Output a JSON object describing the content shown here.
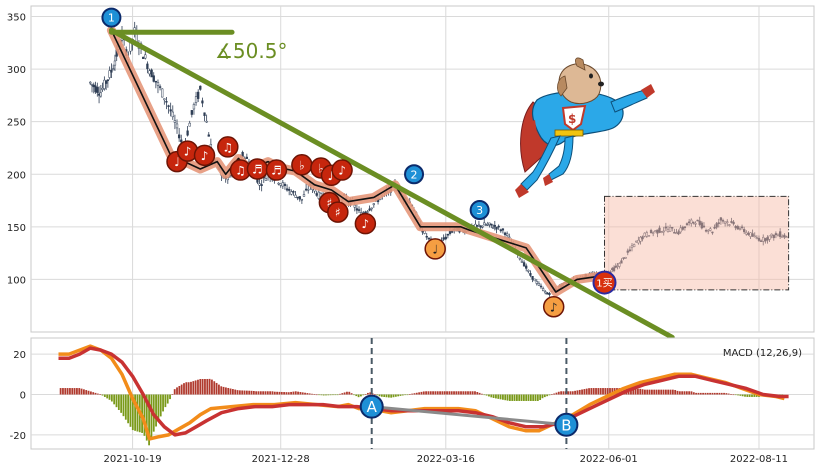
{
  "chart_data": [
    {
      "type": "candlestick",
      "panel": "price",
      "ylim": [
        50,
        360
      ],
      "y_ticks": [
        100,
        150,
        200,
        250,
        300,
        350
      ],
      "x_tick_labels": [
        "2021-10-19",
        "2021-12-28",
        "2022-03-16",
        "2022-06-01",
        "2022-08-11"
      ],
      "x_tick_days": [
        48,
        118,
        196,
        273,
        344
      ],
      "x_range_days": [
        0,
        370
      ],
      "grid": true,
      "price_path": [
        [
          28,
          287
        ],
        [
          33,
          278
        ],
        [
          38,
          298
        ],
        [
          43,
          330
        ],
        [
          46,
          312
        ],
        [
          49,
          335
        ],
        [
          52,
          320
        ],
        [
          56,
          300
        ],
        [
          60,
          285
        ],
        [
          64,
          270
        ],
        [
          67,
          255
        ],
        [
          70,
          238
        ],
        [
          72,
          225
        ],
        [
          74,
          240
        ],
        [
          77,
          265
        ],
        [
          80,
          280
        ],
        [
          83,
          250
        ],
        [
          86,
          215
        ],
        [
          89,
          205
        ],
        [
          92,
          195
        ],
        [
          96,
          200
        ],
        [
          100,
          218
        ],
        [
          104,
          210
        ],
        [
          108,
          190
        ],
        [
          112,
          200
        ],
        [
          116,
          196
        ],
        [
          120,
          188
        ],
        [
          124,
          182
        ],
        [
          128,
          176
        ],
        [
          132,
          190
        ],
        [
          136,
          180
        ],
        [
          140,
          176
        ],
        [
          144,
          162
        ],
        [
          148,
          178
        ],
        [
          152,
          172
        ],
        [
          156,
          162
        ],
        [
          160,
          168
        ],
        [
          164,
          176
        ],
        [
          168,
          182
        ],
        [
          172,
          190
        ],
        [
          176,
          178
        ],
        [
          180,
          172
        ],
        [
          184,
          150
        ],
        [
          188,
          138
        ],
        [
          192,
          132
        ],
        [
          196,
          140
        ],
        [
          200,
          148
        ],
        [
          205,
          147
        ],
        [
          210,
          150
        ],
        [
          215,
          152
        ],
        [
          220,
          150
        ],
        [
          224,
          145
        ],
        [
          228,
          132
        ],
        [
          232,
          118
        ],
        [
          236,
          104
        ],
        [
          240,
          95
        ],
        [
          244,
          86
        ],
        [
          248,
          90
        ],
        [
          253,
          97
        ],
        [
          258,
          100
        ],
        [
          263,
          104
        ],
        [
          268,
          104
        ],
        [
          273,
          106
        ],
        [
          278,
          114
        ],
        [
          282,
          125
        ],
        [
          286,
          135
        ],
        [
          290,
          142
        ],
        [
          294,
          145
        ],
        [
          298,
          147
        ],
        [
          302,
          148
        ],
        [
          306,
          145
        ],
        [
          310,
          152
        ],
        [
          314,
          156
        ],
        [
          318,
          150
        ],
        [
          322,
          146
        ],
        [
          326,
          157
        ],
        [
          330,
          154
        ],
        [
          334,
          150
        ],
        [
          338,
          145
        ],
        [
          342,
          140
        ],
        [
          346,
          138
        ],
        [
          350,
          141
        ],
        [
          354,
          143
        ],
        [
          358,
          140
        ]
      ],
      "zigzag": [
        [
          38,
          337
        ],
        [
          66,
          218
        ],
        [
          80,
          205
        ],
        [
          88,
          212
        ],
        [
          92,
          200
        ],
        [
          98,
          215
        ],
        [
          103,
          205
        ],
        [
          106,
          207
        ],
        [
          112,
          212
        ],
        [
          118,
          206
        ],
        [
          125,
          203
        ],
        [
          134,
          190
        ],
        [
          142,
          185
        ],
        [
          150,
          174
        ],
        [
          162,
          178
        ],
        [
          172,
          190
        ],
        [
          184,
          150
        ],
        [
          203,
          150
        ],
        [
          207,
          147
        ],
        [
          234,
          130
        ],
        [
          248,
          88
        ],
        [
          258,
          100
        ],
        [
          272,
          104
        ]
      ],
      "trendline": [
        [
          38,
          337
        ],
        [
          303,
          45
        ]
      ],
      "angle_line": [
        [
          38,
          335
        ],
        [
          95,
          335
        ]
      ],
      "angle_label": "∡50.5°",
      "wave_markers": [
        {
          "label": "1",
          "day": 38,
          "price": 349
        },
        {
          "label": "2",
          "day": 181,
          "price": 200
        },
        {
          "label": "3",
          "day": 212,
          "price": 166
        }
      ],
      "note_markers": [
        {
          "glyph": "♩",
          "day": 69,
          "price": 212,
          "fill": "#c6260d"
        },
        {
          "glyph": "♪",
          "day": 74,
          "price": 222,
          "fill": "#c6260d"
        },
        {
          "glyph": "♪",
          "day": 82,
          "price": 218,
          "fill": "#c6260d"
        },
        {
          "glyph": "♫",
          "day": 93,
          "price": 226,
          "fill": "#c6260d"
        },
        {
          "glyph": "♫",
          "day": 99,
          "price": 204,
          "fill": "#c6260d"
        },
        {
          "glyph": "♬",
          "day": 107,
          "price": 205,
          "fill": "#c6260d"
        },
        {
          "glyph": "♬",
          "day": 116,
          "price": 204,
          "fill": "#c6260d"
        },
        {
          "glyph": "♭",
          "day": 128,
          "price": 209,
          "fill": "#c6260d"
        },
        {
          "glyph": "♭",
          "day": 137,
          "price": 206,
          "fill": "#c6260d"
        },
        {
          "glyph": "♪",
          "day": 142,
          "price": 199,
          "fill": "#c6260d"
        },
        {
          "glyph": "♪",
          "day": 147,
          "price": 204,
          "fill": "#c6260d"
        },
        {
          "glyph": "♯",
          "day": 141,
          "price": 173,
          "fill": "#c6260d"
        },
        {
          "glyph": "♯",
          "day": 145,
          "price": 164,
          "fill": "#c6260d"
        },
        {
          "glyph": "♪",
          "day": 158,
          "price": 153,
          "fill": "#c6260d"
        },
        {
          "glyph": "♩",
          "day": 191,
          "price": 129,
          "fill": "#f59e42"
        },
        {
          "glyph": "♪",
          "day": 247,
          "price": 74,
          "fill": "#f59e42"
        }
      ],
      "buy_marker": {
        "label": "1买",
        "day": 271,
        "price": 97
      },
      "highlight_box": {
        "day_range": [
          271,
          358
        ],
        "price_range": [
          90,
          179
        ]
      }
    },
    {
      "type": "macd",
      "panel": "indicator",
      "legend": "MACD (12,26,9)",
      "ylim": [
        -27,
        28
      ],
      "y_ticks": [
        -20,
        0,
        20
      ],
      "dif_path": [
        [
          13,
          20
        ],
        [
          18,
          20
        ],
        [
          23,
          22
        ],
        [
          28,
          24
        ],
        [
          33,
          22
        ],
        [
          38,
          18
        ],
        [
          43,
          10
        ],
        [
          48,
          -2
        ],
        [
          53,
          -12
        ],
        [
          56,
          -22
        ],
        [
          60,
          -21
        ],
        [
          65,
          -20
        ],
        [
          70,
          -17
        ],
        [
          75,
          -14
        ],
        [
          80,
          -10
        ],
        [
          85,
          -7
        ],
        [
          95,
          -6
        ],
        [
          105,
          -5
        ],
        [
          115,
          -5
        ],
        [
          125,
          -4
        ],
        [
          135,
          -5
        ],
        [
          145,
          -6
        ],
        [
          150,
          -5
        ],
        [
          155,
          -7
        ],
        [
          160,
          -6
        ],
        [
          165,
          -8
        ],
        [
          170,
          -9
        ],
        [
          178,
          -8
        ],
        [
          186,
          -7
        ],
        [
          194,
          -7
        ],
        [
          202,
          -7
        ],
        [
          210,
          -8
        ],
        [
          218,
          -12
        ],
        [
          226,
          -16
        ],
        [
          234,
          -18
        ],
        [
          240,
          -18
        ],
        [
          248,
          -14
        ],
        [
          256,
          -10
        ],
        [
          264,
          -5
        ],
        [
          272,
          -1
        ],
        [
          280,
          3
        ],
        [
          288,
          6
        ],
        [
          296,
          8
        ],
        [
          304,
          10
        ],
        [
          312,
          10
        ],
        [
          320,
          8
        ],
        [
          328,
          6
        ],
        [
          336,
          3
        ],
        [
          344,
          0
        ],
        [
          352,
          -1
        ],
        [
          356,
          -2
        ]
      ],
      "dea_path": [
        [
          13,
          18
        ],
        [
          18,
          18
        ],
        [
          23,
          20
        ],
        [
          28,
          23
        ],
        [
          33,
          22
        ],
        [
          38,
          20
        ],
        [
          43,
          16
        ],
        [
          48,
          9
        ],
        [
          53,
          0
        ],
        [
          58,
          -10
        ],
        [
          63,
          -16
        ],
        [
          68,
          -20
        ],
        [
          73,
          -19
        ],
        [
          78,
          -16
        ],
        [
          83,
          -13
        ],
        [
          90,
          -9
        ],
        [
          98,
          -7
        ],
        [
          106,
          -6
        ],
        [
          114,
          -6
        ],
        [
          122,
          -5
        ],
        [
          130,
          -5
        ],
        [
          138,
          -5
        ],
        [
          146,
          -6
        ],
        [
          154,
          -6
        ],
        [
          162,
          -7
        ],
        [
          170,
          -8
        ],
        [
          178,
          -8
        ],
        [
          186,
          -8
        ],
        [
          194,
          -8
        ],
        [
          202,
          -8
        ],
        [
          210,
          -9
        ],
        [
          218,
          -11
        ],
        [
          226,
          -14
        ],
        [
          234,
          -16
        ],
        [
          242,
          -16
        ],
        [
          250,
          -14
        ],
        [
          258,
          -10
        ],
        [
          266,
          -6
        ],
        [
          274,
          -2
        ],
        [
          282,
          2
        ],
        [
          290,
          5
        ],
        [
          298,
          7
        ],
        [
          306,
          9
        ],
        [
          314,
          9
        ],
        [
          322,
          7
        ],
        [
          330,
          5
        ],
        [
          338,
          3
        ],
        [
          346,
          0
        ],
        [
          354,
          -1
        ],
        [
          358,
          -1
        ]
      ],
      "divergence_line": [
        [
          161,
          -6
        ],
        [
          253,
          -15
        ]
      ],
      "divergence_markers": [
        {
          "label": "A",
          "day": 161,
          "value": -6
        },
        {
          "label": "B",
          "day": 253,
          "value": -15
        }
      ],
      "dashed_vlines_days": [
        161,
        253
      ]
    }
  ]
}
